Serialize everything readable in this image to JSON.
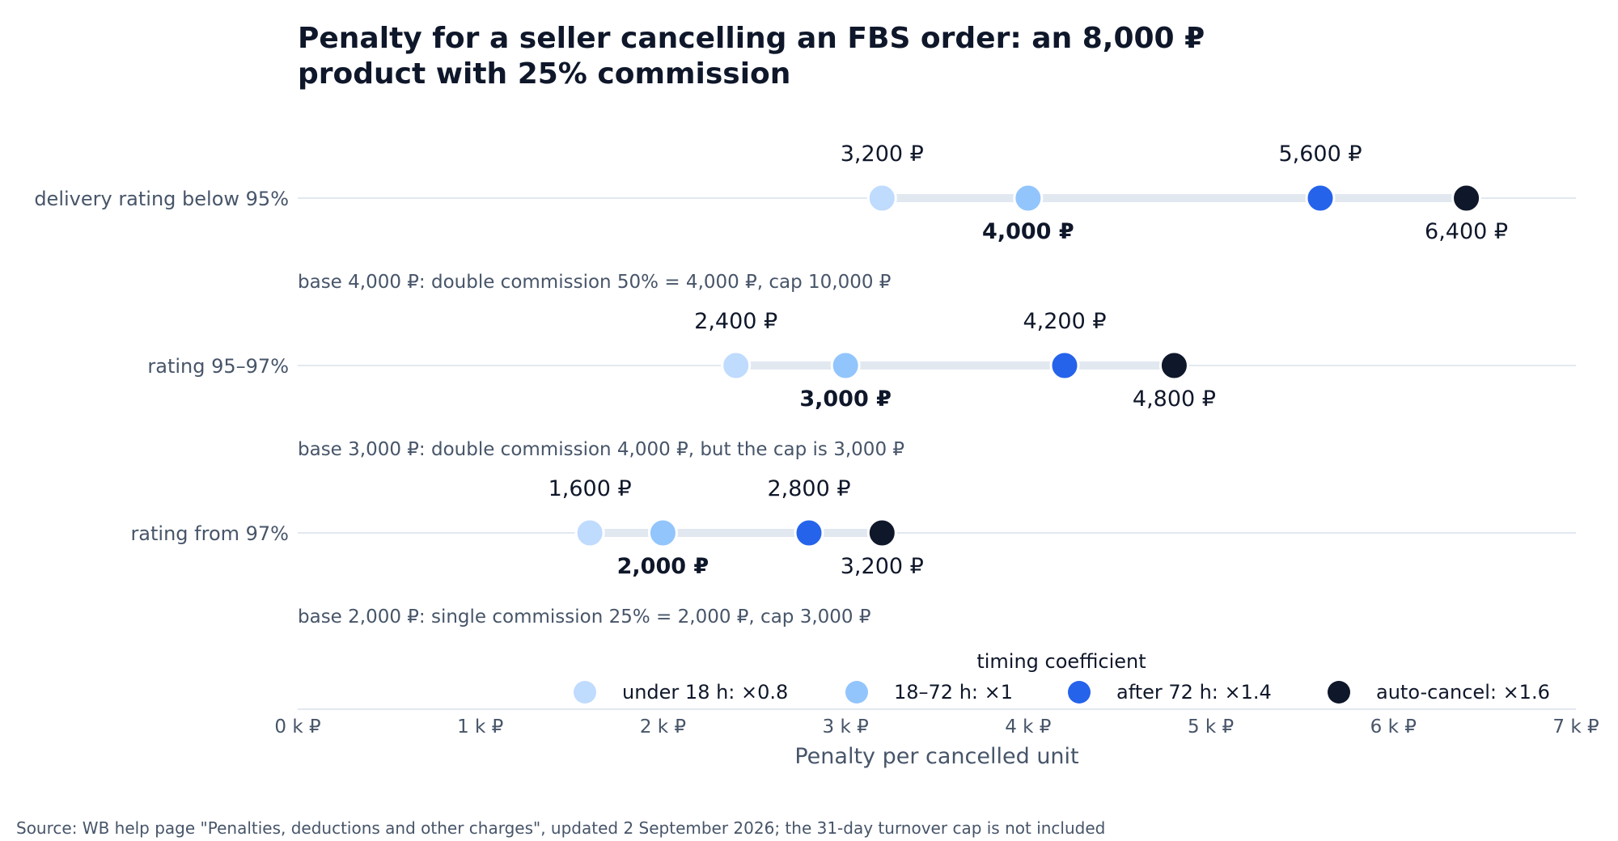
{
  "chart_data": {
    "type": "scatter",
    "title_lines": [
      "Penalty for a seller cancelling an FBS order: an 8,000 ₽",
      "product with 25% commission"
    ],
    "xlabel": "Penalty per cancelled unit",
    "xlim": [
      0,
      7000
    ],
    "xticks": [
      {
        "value": 0,
        "label": "0 k ₽"
      },
      {
        "value": 1000,
        "label": "1 k ₽"
      },
      {
        "value": 2000,
        "label": "2 k ₽"
      },
      {
        "value": 3000,
        "label": "3 k ₽"
      },
      {
        "value": 4000,
        "label": "4 k ₽"
      },
      {
        "value": 5000,
        "label": "5 k ₽"
      },
      {
        "value": 6000,
        "label": "6 k ₽"
      },
      {
        "value": 7000,
        "label": "7 k ₽"
      }
    ],
    "series": [
      {
        "name": "under 18 h: ×0.8",
        "color": "#bfdbfe"
      },
      {
        "name": "18–72 h: ×1",
        "color": "#93c5fd"
      },
      {
        "name": "after 72 h: ×1.4",
        "color": "#2563eb"
      },
      {
        "name": "auto-cancel: ×1.6",
        "color": "#0f172a"
      }
    ],
    "rows": [
      {
        "category": "delivery rating below 95%",
        "values": [
          3200,
          4000,
          5600,
          6400
        ],
        "labels": [
          "3,200 ₽",
          "4,000 ₽",
          "5,600 ₽",
          "6,400 ₽"
        ],
        "note": "base 4,000 ₽: double commission 50% = 4,000 ₽, cap 10,000 ₽"
      },
      {
        "category": "rating 95–97%",
        "values": [
          2400,
          3000,
          4200,
          4800
        ],
        "labels": [
          "2,400 ₽",
          "3,000 ₽",
          "4,200 ₽",
          "4,800 ₽"
        ],
        "note": "base 3,000 ₽: double commission 4,000 ₽, but the cap is 3,000 ₽"
      },
      {
        "category": "rating from 97%",
        "values": [
          1600,
          2000,
          2800,
          3200
        ],
        "labels": [
          "1,600 ₽",
          "2,000 ₽",
          "2,800 ₽",
          "3,200 ₽"
        ],
        "note": "base 2,000 ₽: single commission 25% = 2,000 ₽, cap 3,000 ₽"
      }
    ],
    "legend": {
      "title": "timing coefficient",
      "placement": "bottom-right"
    },
    "source": "Source: WB help page \"Penalties, deductions and other charges\", updated 2 September 2026; the 31-day turnover cap is not included",
    "grid": false
  }
}
